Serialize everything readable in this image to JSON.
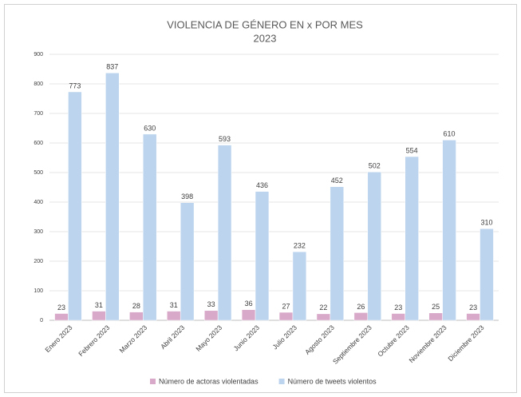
{
  "chart_data": {
    "type": "bar",
    "title": "VIOLENCIA DE GÉNERO EN x POR MES",
    "subtitle": "2023",
    "categories": [
      "Enero 2023",
      "Febrero 2023",
      "Marzo 2023",
      "Abril 2023",
      "Mayo 2023",
      "Junio 2023",
      "Julio 2023",
      "Agosto 2023",
      "Septiembre 2023",
      "Octubre 2023",
      "Noviembre 2023",
      "Diciembre 2023"
    ],
    "series": [
      {
        "name": "Número de actoras violentadas",
        "color": "#d9a9c9",
        "values": [
          23,
          31,
          28,
          31,
          33,
          36,
          27,
          22,
          26,
          23,
          25,
          23
        ]
      },
      {
        "name": "Número de tweets violentos",
        "color": "#bcd4ee",
        "values": [
          773,
          837,
          630,
          398,
          593,
          436,
          232,
          452,
          502,
          554,
          610,
          310
        ]
      }
    ],
    "ylim": [
      0,
      900
    ],
    "yticks": [
      0,
      100,
      200,
      300,
      400,
      500,
      600,
      700,
      800,
      900
    ],
    "grid": true,
    "legend": "bottom"
  }
}
